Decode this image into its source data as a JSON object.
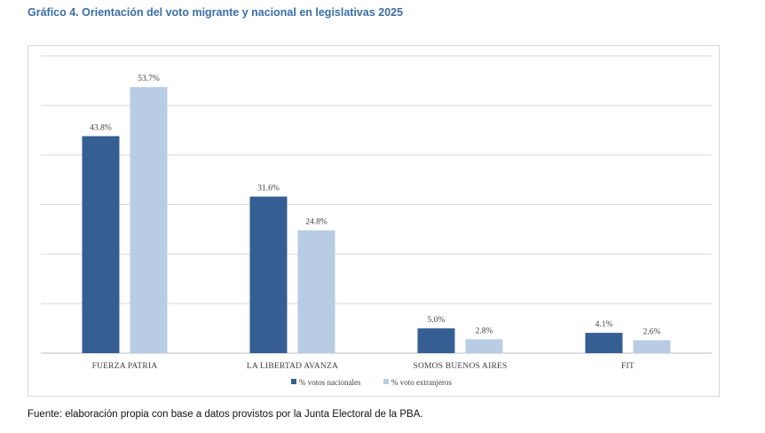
{
  "header": {
    "title": "Gráfico 4. Orientación del voto migrante y nacional en legislativas 2025"
  },
  "footer": {
    "source": "Fuente: elaboración propia con base a datos provistos por la Junta Electoral de la PBA."
  },
  "chart_data": {
    "type": "bar",
    "title": "",
    "xlabel": "",
    "ylabel": "",
    "categories": [
      "FUERZA PATRIA",
      "LA LIBERTAD AVANZA",
      "SOMOS BUENOS AIRES",
      "FIT"
    ],
    "series": [
      {
        "name": "% votos nacionales",
        "values": [
          43.8,
          31.6,
          5.0,
          4.1
        ],
        "labels": [
          "43.8%",
          "31.6%",
          "5.0%",
          "4.1%"
        ],
        "color": "#355e93"
      },
      {
        "name": "% voto extranjeros",
        "values": [
          53.7,
          24.8,
          2.8,
          2.6
        ],
        "labels": [
          "53.7%",
          "24.8%",
          "2.8%",
          "2.6%"
        ],
        "color": "#b8cce4"
      }
    ],
    "ylim": [
      0,
      60
    ],
    "y_gridlines": [
      0,
      10,
      20,
      30,
      40,
      50,
      60
    ],
    "y_tick_labels_shown": false,
    "grid": true,
    "legend_position": "bottom"
  },
  "colors": {
    "title": "#3a6ea5",
    "gridline": "#d9d9d9",
    "axis_text": "#404040"
  }
}
